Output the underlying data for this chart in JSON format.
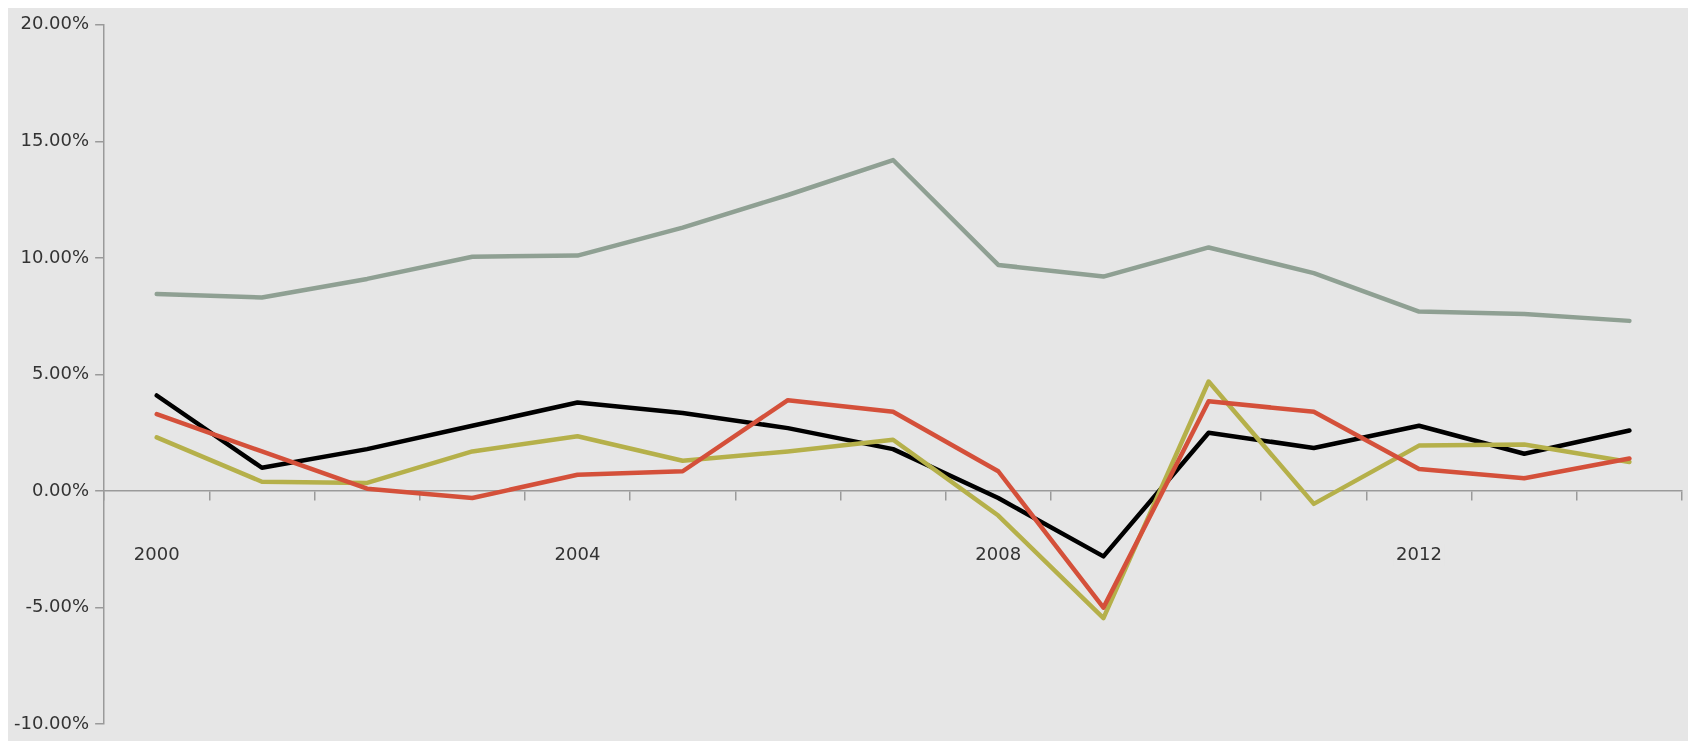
{
  "chart_data": {
    "type": "line",
    "categories": [
      "2000",
      null,
      null,
      null,
      "2004",
      null,
      null,
      null,
      "2008",
      null,
      null,
      null,
      "2012",
      null,
      null
    ],
    "series": [
      {
        "color": "#8fa093",
        "values": [
          8.45,
          8.3,
          9.1,
          10.05,
          10.1,
          11.3,
          12.7,
          14.2,
          9.7,
          9.2,
          10.45,
          9.35,
          7.7,
          7.6,
          7.3
        ]
      },
      {
        "color": "#d4503a",
        "values": [
          3.3,
          1.7,
          0.1,
          -0.3,
          0.7,
          0.85,
          3.9,
          3.4,
          0.85,
          -5.0,
          3.85,
          3.4,
          0.95,
          0.55,
          1.4
        ]
      },
      {
        "color": "#b5b04a",
        "values": [
          2.3,
          0.4,
          0.35,
          1.7,
          2.35,
          1.3,
          1.7,
          2.2,
          -1.05,
          -5.45,
          4.7,
          -0.55,
          1.95,
          2.0,
          1.25
        ]
      },
      {
        "color": "#000000",
        "values": [
          4.1,
          1.0,
          1.8,
          2.8,
          3.8,
          3.35,
          2.7,
          1.8,
          -0.3,
          -2.8,
          2.5,
          1.85,
          2.8,
          1.6,
          2.6
        ]
      }
    ],
    "ylim": [
      -10,
      20
    ],
    "yticks": [
      {
        "value": -10,
        "label": "-10.00%"
      },
      {
        "value": -5,
        "label": "-5.00%"
      },
      {
        "value": 0,
        "label": "0.00%"
      },
      {
        "value": 5,
        "label": "5.00%"
      },
      {
        "value": 10,
        "label": "10.00%"
      },
      {
        "value": 15,
        "label": "15.00%"
      },
      {
        "value": 20,
        "label": "20.00%"
      }
    ],
    "legend": false,
    "marker": "none",
    "line_style": "solid"
  }
}
